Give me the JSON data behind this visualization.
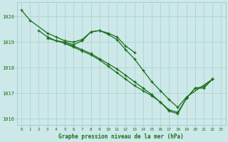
{
  "background_color": "#cce8e8",
  "grid_color": "#aacece",
  "line_color": "#1a6e1a",
  "label_color": "#1a6e1a",
  "xlabel": "Graphe pression niveau de la mer (hPa)",
  "xlim": [
    -0.5,
    23.5
  ],
  "ylim": [
    1015.75,
    1020.55
  ],
  "yticks": [
    1016,
    1017,
    1018,
    1019,
    1020
  ],
  "xticks": [
    0,
    1,
    2,
    3,
    4,
    5,
    6,
    7,
    8,
    9,
    10,
    11,
    12,
    13,
    14,
    15,
    16,
    17,
    18,
    19,
    20,
    21,
    22,
    23
  ],
  "series": [
    {
      "x": [
        0,
        1,
        3,
        4,
        5,
        6,
        7,
        8,
        9,
        10,
        11,
        12,
        13
      ],
      "y": [
        1020.25,
        1019.85,
        1019.35,
        1019.2,
        1019.05,
        1019.0,
        1019.1,
        1019.4,
        1019.45,
        1019.35,
        1019.2,
        1018.85,
        1018.6
      ]
    },
    {
      "x": [
        2,
        3,
        4,
        5,
        6,
        7,
        8,
        9,
        10,
        11,
        12,
        13,
        14,
        15,
        16,
        17,
        18,
        19,
        22
      ],
      "y": [
        1019.45,
        1019.2,
        1019.05,
        1019.0,
        1018.9,
        1019.05,
        1019.4,
        1019.45,
        1019.3,
        1019.1,
        1018.7,
        1018.35,
        1017.9,
        1017.45,
        1017.1,
        1016.75,
        1016.45,
        1016.85,
        1017.55
      ]
    },
    {
      "x": [
        3,
        4,
        5,
        6,
        7,
        8,
        9,
        10,
        11,
        12,
        13,
        14,
        15,
        16,
        17,
        18,
        19,
        20,
        21,
        22
      ],
      "y": [
        1019.15,
        1019.05,
        1018.95,
        1018.8,
        1018.65,
        1018.5,
        1018.3,
        1018.05,
        1017.8,
        1017.55,
        1017.3,
        1017.1,
        1016.9,
        1016.65,
        1016.35,
        1016.25,
        1016.8,
        1017.2,
        1017.2,
        1017.55
      ]
    },
    {
      "x": [
        5,
        6,
        7,
        8,
        9,
        10,
        11,
        12,
        13,
        14,
        15,
        16,
        17,
        18,
        19,
        20,
        21,
        22
      ],
      "y": [
        1018.95,
        1018.85,
        1018.7,
        1018.55,
        1018.35,
        1018.15,
        1017.95,
        1017.7,
        1017.45,
        1017.2,
        1016.95,
        1016.65,
        1016.3,
        1016.2,
        1016.8,
        1017.2,
        1017.25,
        1017.55
      ]
    }
  ]
}
